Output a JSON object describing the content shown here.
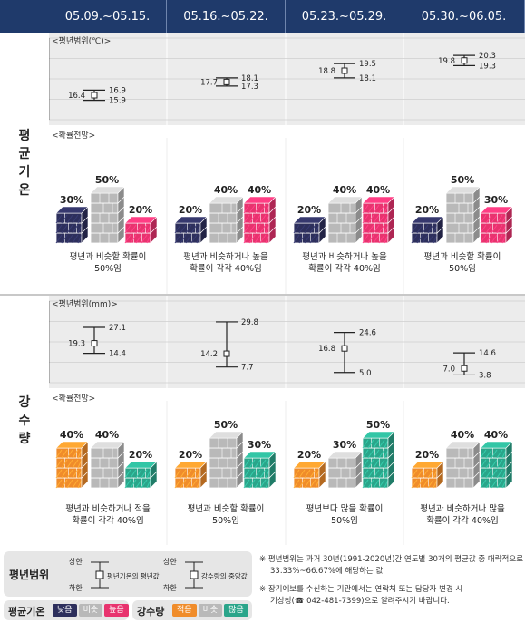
{
  "headers": [
    "05.09.~05.15.",
    "05.16.~05.22.",
    "05.23.~05.29.",
    "05.30.~06.05."
  ],
  "temp": {
    "row_label": [
      "평",
      "균",
      "기",
      "온"
    ],
    "range_label": "<평년범위(℃)>",
    "prob_label": "<확률전망>",
    "axis_ticks": [
      "22",
      "20",
      "18",
      "16",
      "14"
    ],
    "descriptions": [
      [
        "평년과 비슷할 확률이",
        "50%임"
      ],
      [
        "평년과 비슷하거나 높을",
        "확률이 각각 40%임"
      ],
      [
        "평년과 비슷하거나 높을",
        "확률이 각각 40%임"
      ],
      [
        "평년과 비슷할 확률이",
        "50%임"
      ]
    ],
    "probs": [
      {
        "low": "30%",
        "normal": "50%",
        "high": "20%"
      },
      {
        "low": "20%",
        "normal": "40%",
        "high": "40%"
      },
      {
        "low": "20%",
        "normal": "40%",
        "high": "40%"
      },
      {
        "low": "20%",
        "normal": "50%",
        "high": "30%"
      }
    ],
    "colors": {
      "low": "#2d2f5c",
      "normal": "#b9b9b9",
      "high": "#e8336e"
    }
  },
  "rain": {
    "row_label": [
      "강",
      "수",
      "량"
    ],
    "range_label": "<평년범위(mm)>",
    "prob_label": "<확률전망>",
    "axis_ticks": [
      "40",
      "30",
      "20",
      "10",
      "0"
    ],
    "descriptions": [
      [
        "평년과 비슷하거나 적을",
        "확률이 각각 40%임"
      ],
      [
        "평년과 비슷할 확률이",
        "50%임"
      ],
      [
        "평년보다 많을 확률이",
        "50%임"
      ],
      [
        "평년과 비슷하거나 많을",
        "확률이 각각 40%임"
      ]
    ],
    "probs": [
      {
        "low": "40%",
        "normal": "40%",
        "high": "20%"
      },
      {
        "low": "20%",
        "normal": "50%",
        "high": "30%"
      },
      {
        "low": "20%",
        "normal": "30%",
        "high": "50%"
      },
      {
        "low": "20%",
        "normal": "40%",
        "high": "40%"
      }
    ],
    "colors": {
      "low": "#f08c2a",
      "normal": "#b9b9b9",
      "high": "#2aa58a"
    }
  },
  "legend": {
    "title": "평년범위",
    "upper": "상한",
    "lower": "하한",
    "temp_mean": "평년기온의 평년값",
    "rain_mean": "강수량의 중앙값",
    "temp_title": "평균기온",
    "rain_title": "강수량",
    "temp_chips": [
      "낮음",
      "비슷",
      "높음"
    ],
    "rain_chips": [
      "적음",
      "비슷",
      "많음"
    ]
  },
  "notes": [
    "※ 평년범위는 과거 30년(1991-2020년)간 연도별 30개의 평균값 중 대략적으로",
    "33.33%~66.67%에 해당하는 값",
    "※ 장기예보를 수신하는 기관에서는 연락처 또는 담당자 변경 시",
    "기상청(☎ 042-481-7399)으로 알려주시기 바랍니다."
  ],
  "chart_data": [
    {
      "type": "scatter",
      "ylabel": "평년범위(℃)",
      "ylim": [
        14,
        22
      ],
      "categories": [
        "05.09.~05.15.",
        "05.16.~05.22.",
        "05.23.~05.29.",
        "05.30.~06.05."
      ],
      "mean": [
        16.4,
        17.7,
        18.8,
        19.8
      ],
      "upper": [
        16.9,
        18.1,
        19.5,
        20.3
      ],
      "lower": [
        15.9,
        17.3,
        18.1,
        19.3
      ]
    },
    {
      "type": "scatter",
      "ylabel": "평년범위(mm)",
      "ylim": [
        0,
        40
      ],
      "categories": [
        "05.09.~05.15.",
        "05.16.~05.22.",
        "05.23.~05.29.",
        "05.30.~06.05."
      ],
      "mean": [
        19.3,
        14.2,
        16.8,
        7.0
      ],
      "upper": [
        27.1,
        29.8,
        24.6,
        14.6
      ],
      "lower": [
        14.4,
        7.7,
        5.0,
        3.8
      ]
    }
  ]
}
